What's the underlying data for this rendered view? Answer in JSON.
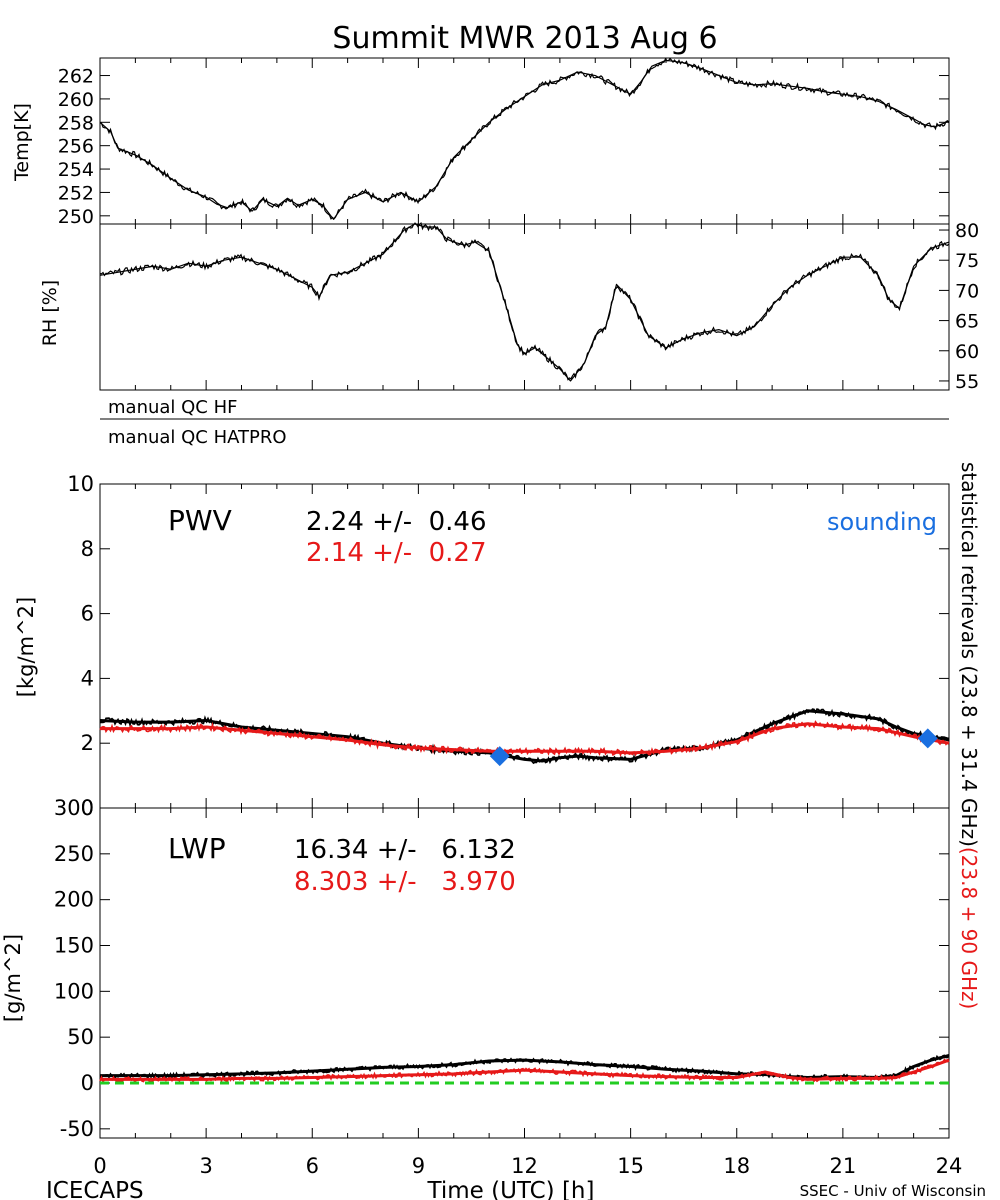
{
  "title": "Summit MWR 2013 Aug  6",
  "footer": {
    "left": "ICECAPS",
    "center": "Time (UTC) [h]",
    "right": "SSEC - Univ of Wisconsin"
  },
  "qc_labels": [
    "manual QC HF",
    "manual QC HATPRO"
  ],
  "side_label": {
    "black_part": "statistical retrievals (23.8 + 31.4 GHz)",
    "red_part": "(23.8 + 90 GHz)"
  },
  "colors": {
    "black_series": "#000000",
    "red_series": "#e61919",
    "sounding": "#1a6fe0",
    "zero_line": "#22cc22"
  },
  "chart_data": [
    {
      "id": "temp",
      "type": "line",
      "ylabel": "Temp[K]",
      "xlim": [
        0,
        24
      ],
      "ylim": [
        249.3,
        263.5
      ],
      "yticks": [
        250,
        252,
        254,
        256,
        258,
        260,
        262
      ],
      "series": [
        {
          "color": "black",
          "x": [
            0,
            0.3,
            0.5,
            1,
            1.5,
            2,
            2.5,
            3,
            3.3,
            3.6,
            4,
            4.3,
            4.6,
            5,
            5.3,
            5.6,
            6,
            6.3,
            6.6,
            7,
            7.5,
            8,
            8.5,
            9,
            9.5,
            10,
            10.5,
            11,
            11.5,
            12,
            12.5,
            13,
            13.5,
            14,
            14.5,
            15,
            15.3,
            15.6,
            16,
            16.5,
            17,
            17.5,
            18,
            18.5,
            19,
            19.5,
            20,
            20.5,
            21,
            21.5,
            22,
            22.5,
            23,
            23.3,
            23.6,
            24
          ],
          "y": [
            258.0,
            257.2,
            255.8,
            255.2,
            254.3,
            253.2,
            252.2,
            251.6,
            251.0,
            250.7,
            251.2,
            250.4,
            251.4,
            250.8,
            251.5,
            250.9,
            251.4,
            250.9,
            249.7,
            251.4,
            252.0,
            251.2,
            252.0,
            251.2,
            252.5,
            255.0,
            256.5,
            258.0,
            259.2,
            260.2,
            261.2,
            261.6,
            262.3,
            262.0,
            261.2,
            260.4,
            261.5,
            262.8,
            263.3,
            263.1,
            262.6,
            262.0,
            261.4,
            261.2,
            261.3,
            261.1,
            260.9,
            260.6,
            260.4,
            260.2,
            259.8,
            259.1,
            258.3,
            257.8,
            257.6,
            258.1
          ]
        }
      ]
    },
    {
      "id": "rh",
      "type": "line",
      "ylabel": "RH [%]",
      "xlim": [
        0,
        24
      ],
      "ylim": [
        53.5,
        81
      ],
      "yticks": [
        55,
        60,
        65,
        70,
        75,
        80
      ],
      "series": [
        {
          "color": "black",
          "x": [
            0,
            0.5,
            1,
            1.5,
            2,
            2.5,
            3,
            3.5,
            4,
            4.5,
            5,
            5.5,
            6,
            6.2,
            6.5,
            7,
            7.5,
            8,
            8.3,
            8.6,
            8.9,
            9.2,
            9.5,
            9.8,
            10,
            10.3,
            10.6,
            11,
            11.5,
            11.8,
            12,
            12.3,
            12.6,
            13,
            13.3,
            13.7,
            14,
            14.3,
            14.6,
            15,
            15.5,
            16,
            16.5,
            17,
            17.5,
            18,
            18.5,
            19,
            19.5,
            20,
            20.5,
            21,
            21.5,
            22,
            22.3,
            22.6,
            23,
            23.5,
            24
          ],
          "y": [
            72.5,
            73.0,
            73.5,
            74.0,
            73.5,
            74.5,
            74.0,
            75.0,
            75.5,
            74.5,
            73.5,
            72.0,
            70.5,
            69.0,
            72.5,
            73.0,
            74.5,
            76.0,
            78.0,
            80.0,
            81.0,
            80.5,
            80.5,
            78.5,
            78.0,
            77.5,
            78.0,
            76.5,
            67.0,
            61.0,
            59.5,
            60.5,
            59.0,
            57.0,
            55.0,
            58.0,
            62.5,
            64.0,
            71.0,
            68.5,
            62.5,
            60.5,
            62.0,
            63.0,
            63.5,
            62.5,
            64.0,
            67.5,
            70.5,
            72.5,
            74.0,
            75.5,
            75.5,
            72.5,
            68.5,
            67.0,
            74.0,
            77.0,
            78.0
          ]
        }
      ]
    },
    {
      "id": "pwv",
      "type": "line",
      "title": "PWV",
      "ylabel": "[kg/m^2]",
      "xlim": [
        0,
        24
      ],
      "ylim": [
        0,
        10
      ],
      "yticks": [
        0,
        2,
        4,
        6,
        8,
        10
      ],
      "annotations": [
        {
          "text": "2.24 +/-  0.46",
          "color": "black"
        },
        {
          "text": "2.14 +/-  0.27",
          "color": "red"
        }
      ],
      "legend": [
        "sounding"
      ],
      "series": [
        {
          "color": "black",
          "x": [
            0,
            1,
            2,
            3,
            4,
            5,
            6,
            7,
            8,
            9,
            10,
            11,
            11.5,
            12,
            12.5,
            13,
            13.5,
            14,
            15,
            15.5,
            16,
            17,
            18,
            19,
            19.5,
            20,
            21,
            22,
            22.5,
            23,
            23.5,
            24
          ],
          "y": [
            2.7,
            2.65,
            2.65,
            2.7,
            2.5,
            2.4,
            2.3,
            2.2,
            2.0,
            1.85,
            1.75,
            1.7,
            1.6,
            1.5,
            1.45,
            1.55,
            1.6,
            1.55,
            1.5,
            1.65,
            1.8,
            1.85,
            2.1,
            2.6,
            2.8,
            3.0,
            2.9,
            2.75,
            2.5,
            2.3,
            2.2,
            2.1
          ]
        },
        {
          "color": "red",
          "x": [
            0,
            1,
            2,
            3,
            4,
            5,
            6,
            7,
            8,
            9,
            10,
            11,
            12,
            13,
            14,
            15,
            16,
            17,
            18,
            19,
            20,
            21,
            22,
            23,
            24
          ],
          "y": [
            2.45,
            2.45,
            2.45,
            2.5,
            2.4,
            2.3,
            2.2,
            2.1,
            1.95,
            1.85,
            1.8,
            1.75,
            1.75,
            1.75,
            1.75,
            1.7,
            1.75,
            1.85,
            2.05,
            2.45,
            2.6,
            2.5,
            2.45,
            2.2,
            2.0
          ]
        },
        {
          "name": "sounding",
          "type": "scatter",
          "color": "blue",
          "x": [
            11.3,
            23.4
          ],
          "y": [
            1.6,
            2.15
          ]
        }
      ]
    },
    {
      "id": "lwp",
      "type": "line",
      "title": "LWP",
      "ylabel": "[g/m^2]",
      "xlabel": "Time (UTC) [h]",
      "xlim": [
        0,
        24
      ],
      "ylim": [
        -60,
        300
      ],
      "yticks": [
        -50,
        0,
        50,
        100,
        150,
        200,
        250,
        300
      ],
      "xticks": [
        0,
        3,
        6,
        9,
        12,
        15,
        18,
        21,
        24
      ],
      "annotations": [
        {
          "text": "16.34 +/-   6.132",
          "color": "black"
        },
        {
          "text": "8.303 +/-   3.970",
          "color": "red"
        }
      ],
      "series": [
        {
          "color": "black",
          "x": [
            0,
            1,
            2,
            3,
            4,
            5,
            6,
            7,
            8,
            9,
            10,
            11,
            12,
            13,
            14,
            15,
            16,
            17,
            18,
            19,
            19.5,
            20,
            21,
            22,
            22.5,
            23,
            23.5,
            24
          ],
          "y": [
            8,
            8,
            8,
            9,
            10,
            11,
            13,
            15,
            17,
            18,
            20,
            24,
            25,
            23,
            20,
            18,
            15,
            13,
            10,
            9,
            7,
            6,
            7,
            6,
            8,
            18,
            25,
            30
          ]
        },
        {
          "color": "red",
          "x": [
            0,
            1,
            2,
            3,
            4,
            5,
            6,
            7,
            8,
            9,
            10,
            11,
            12,
            13,
            14,
            15,
            16,
            17,
            18,
            18.8,
            19.5,
            20,
            21,
            22,
            22.5,
            23,
            23.5,
            24
          ],
          "y": [
            4,
            4,
            4,
            4,
            5,
            5,
            6,
            7,
            8,
            9,
            10,
            12,
            14,
            12,
            10,
            8,
            7,
            6,
            6,
            12,
            6,
            4,
            5,
            5,
            6,
            12,
            18,
            25
          ]
        },
        {
          "type": "hline",
          "color": "green",
          "y": [
            0
          ]
        }
      ]
    }
  ]
}
